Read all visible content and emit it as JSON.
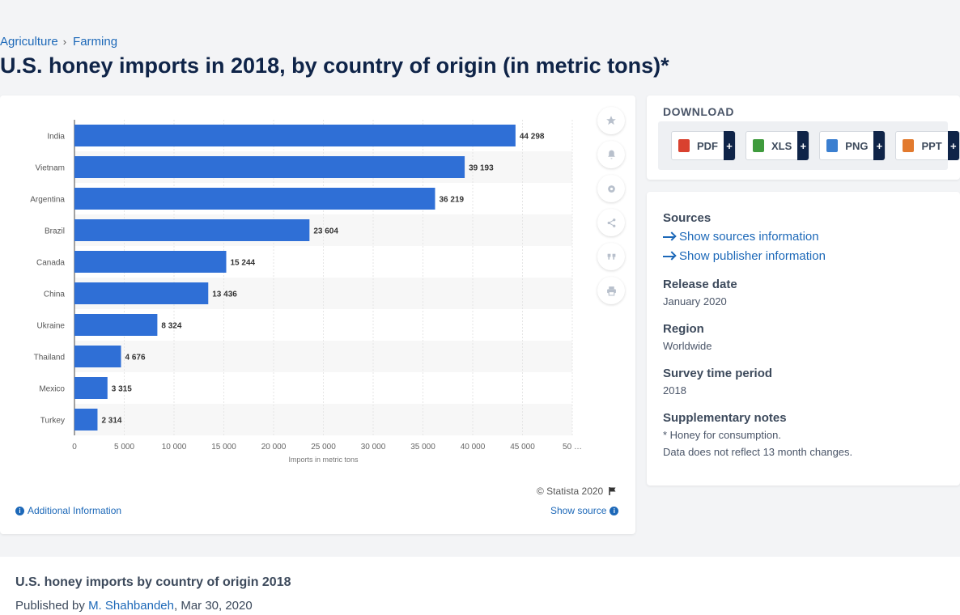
{
  "breadcrumb": {
    "level1": "Agriculture",
    "separator": "›",
    "level2": "Farming"
  },
  "page_title": "U.S. honey imports in 2018, by country of origin (in metric tons)*",
  "chart_data": {
    "type": "bar",
    "orientation": "horizontal",
    "categories": [
      "India",
      "Vietnam",
      "Argentina",
      "Brazil",
      "Canada",
      "China",
      "Ukraine",
      "Thailand",
      "Mexico",
      "Turkey"
    ],
    "values": [
      44298,
      39193,
      36219,
      23604,
      15244,
      13436,
      8324,
      4676,
      3315,
      2314
    ],
    "value_labels": [
      "44 298",
      "39 193",
      "36 219",
      "23 604",
      "15 244",
      "13 436",
      "8 324",
      "4 676",
      "3 315",
      "2 314"
    ],
    "xlabel": "Imports in metric tons",
    "xlim": [
      0,
      50000
    ],
    "x_ticks": [
      "0",
      "5 000",
      "10 000",
      "15 000",
      "20 000",
      "25 000",
      "30 000",
      "35 000",
      "40 000",
      "45 000",
      "50 …"
    ],
    "bar_color": "#2f6fd6",
    "grid": true
  },
  "chart_footer": {
    "copyright": "© Statista 2020",
    "additional_info": "Additional Information",
    "show_source": "Show source"
  },
  "toolbar": {
    "icons": [
      "star-icon",
      "bell-icon",
      "gear-icon",
      "share-icon",
      "quote-icon",
      "print-icon"
    ]
  },
  "download": {
    "title": "DOWNLOAD",
    "buttons": [
      {
        "label": "PDF",
        "icon": "pdf-file-icon",
        "color": "#d9412f",
        "plus": "+"
      },
      {
        "label": "XLS",
        "icon": "xls-file-icon",
        "color": "#3f9b3d",
        "plus": "+"
      },
      {
        "label": "PNG",
        "icon": "png-file-icon",
        "color": "#3b7fd0",
        "plus": "+"
      },
      {
        "label": "PPT",
        "icon": "ppt-file-icon",
        "color": "#e27a2e",
        "plus": "+"
      }
    ]
  },
  "meta": {
    "sources_heading": "Sources",
    "sources_link": "Show sources information",
    "publisher_link": "Show publisher information",
    "release_heading": "Release date",
    "release_value": "January 2020",
    "region_heading": "Region",
    "region_value": "Worldwide",
    "survey_heading": "Survey time period",
    "survey_value": "2018",
    "notes_heading": "Supplementary notes",
    "notes_line1": "* Honey for consumption.",
    "notes_line2": "Data does not reflect 13 month changes."
  },
  "bottom": {
    "title": "U.S. honey imports by country of origin 2018",
    "published_prefix": "Published by",
    "author": "M. Shahbandeh",
    "date": ", Mar 30, 2020"
  }
}
